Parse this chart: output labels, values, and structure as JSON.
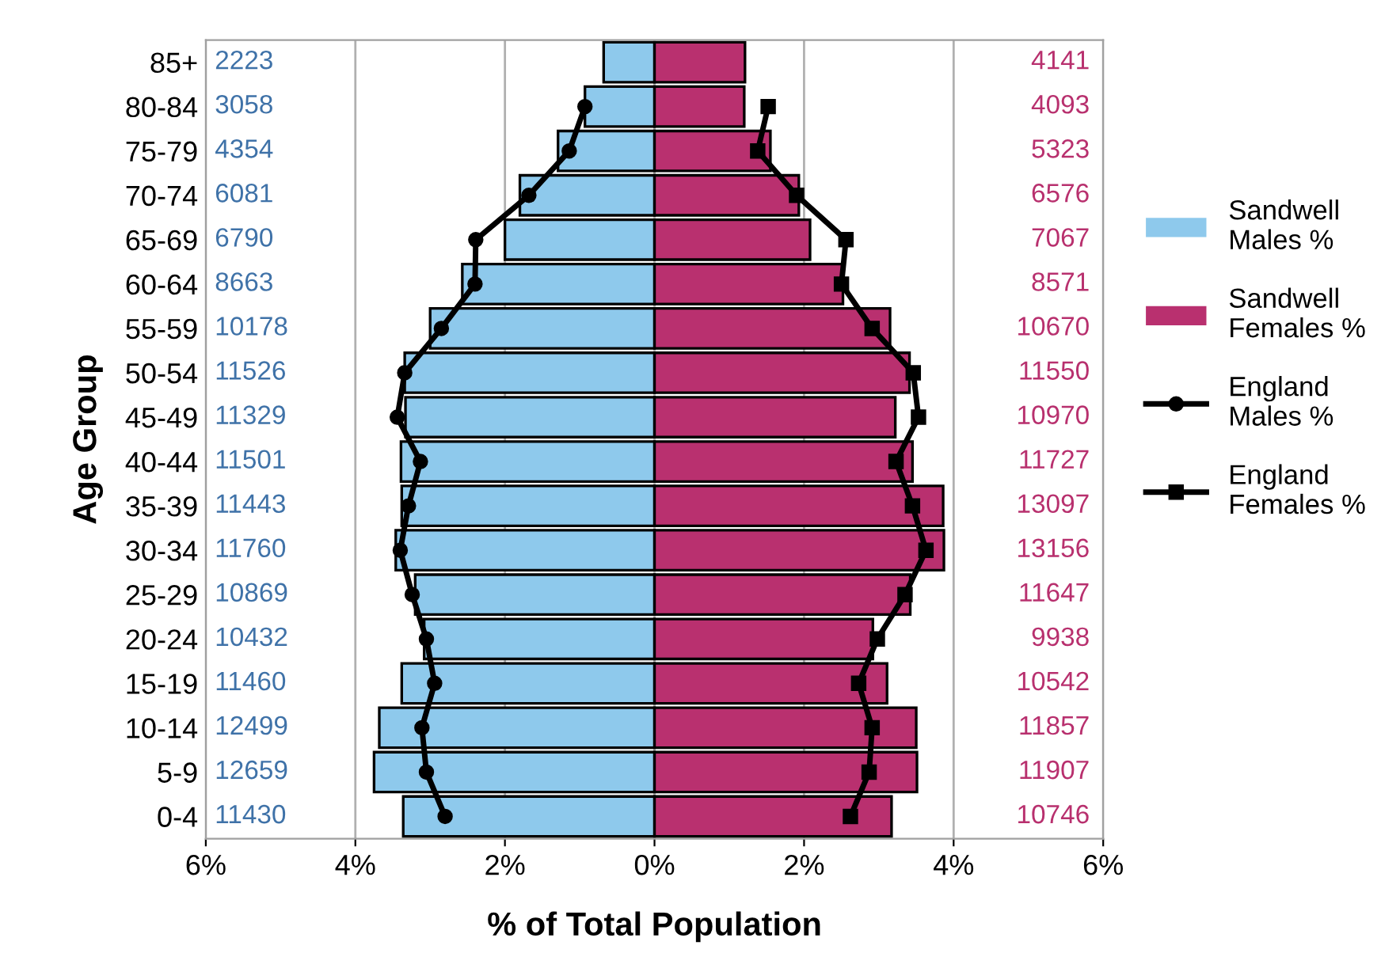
{
  "chart_data": {
    "type": "bar",
    "orientation": "horizontal",
    "stacked": true,
    "xlabel": "% of Total Population",
    "ylabel": "Age Group",
    "categories": [
      "85+",
      "80-84",
      "75-79",
      "70-74",
      "65-69",
      "60-64",
      "55-59",
      "50-54",
      "45-49",
      "40-44",
      "35-39",
      "30-34",
      "25-29",
      "20-24",
      "15-19",
      "10-14",
      "5-9",
      "0-4"
    ],
    "series": [
      {
        "name": "Sandwell\nMales %",
        "color": "#8ec9ec",
        "values": [
          -0.68,
          -0.93,
          -1.29,
          -1.8,
          -2.0,
          -2.57,
          -3.0,
          -3.34,
          -3.33,
          -3.39,
          -3.38,
          -3.46,
          -3.2,
          -3.08,
          -3.38,
          -3.68,
          -3.75,
          -3.36
        ]
      },
      {
        "name": "Sandwell\nFemales %",
        "color": "#b9306f",
        "values": [
          1.21,
          1.2,
          1.55,
          1.93,
          2.08,
          2.52,
          3.15,
          3.41,
          3.22,
          3.45,
          3.86,
          3.87,
          3.42,
          2.92,
          3.11,
          3.5,
          3.51,
          3.17
        ]
      },
      {
        "name": "England\nMales %",
        "type": "line",
        "color": "#000000",
        "marker": "circle",
        "values": [
          null,
          -0.93,
          -1.14,
          -1.68,
          -2.39,
          -2.4,
          -2.85,
          -3.34,
          -3.44,
          -3.13,
          -3.29,
          -3.4,
          -3.24,
          -3.05,
          -2.94,
          -3.11,
          -3.05,
          -2.8
        ]
      },
      {
        "name": "England\nFemales %",
        "type": "line",
        "color": "#000000",
        "marker": "square",
        "values": [
          null,
          1.52,
          1.38,
          1.9,
          2.56,
          2.5,
          2.91,
          3.46,
          3.53,
          3.23,
          3.45,
          3.63,
          3.35,
          2.98,
          2.73,
          2.91,
          2.87,
          2.62
        ]
      }
    ],
    "xlim": [
      -6,
      6
    ],
    "xticks": [
      {
        "value": -6,
        "label": "6%"
      },
      {
        "value": -4,
        "label": "4%"
      },
      {
        "value": -2,
        "label": "2%"
      },
      {
        "value": 0,
        "label": "0%"
      },
      {
        "value": 2,
        "label": "2%"
      },
      {
        "value": 4,
        "label": "4%"
      },
      {
        "value": 6,
        "label": "6%"
      }
    ],
    "grid": "x",
    "legend": "right",
    "line_style": "solid",
    "annotations": [
      "2223",
      "3058",
      "4354",
      "6081",
      "6790",
      "8663",
      "10178",
      "11526",
      "11329",
      "11501",
      "11443",
      "11760",
      "10869",
      "10432",
      "11460",
      "12499",
      "12659",
      "11430",
      "4141",
      "4093",
      "5323",
      "6576",
      "7067",
      "8571",
      "10670",
      "11550",
      "10970",
      "11727",
      "13097",
      "13156",
      "11647",
      "9938",
      "10542",
      "11857",
      "11907",
      "10746"
    ]
  }
}
